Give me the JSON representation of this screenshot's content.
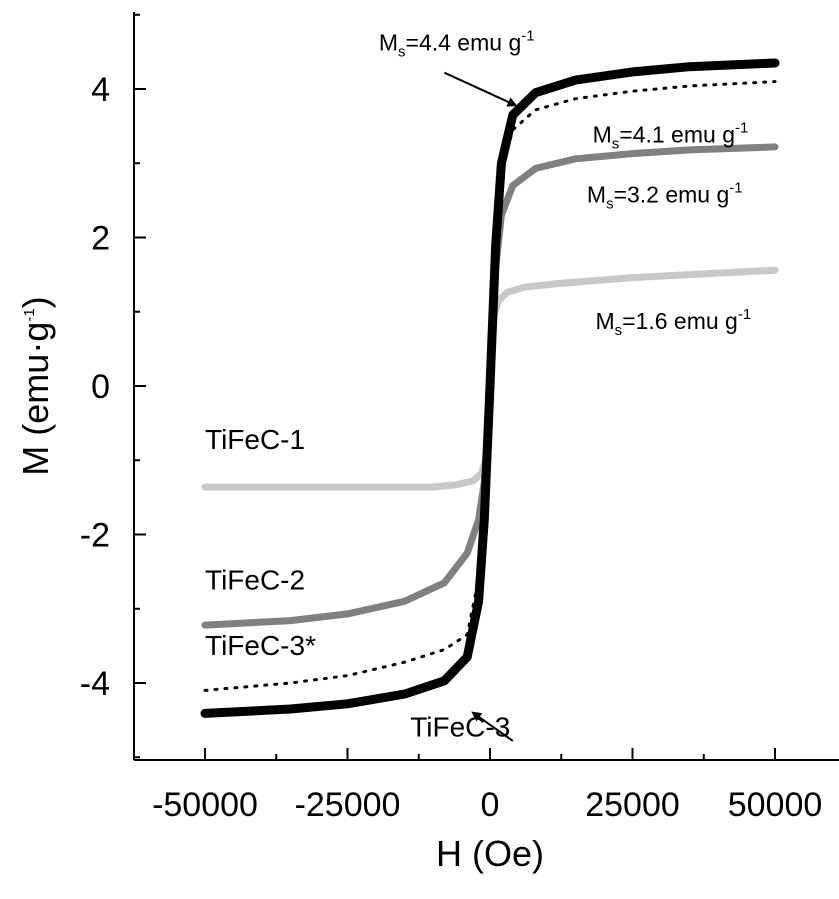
{
  "chart_data": {
    "type": "line",
    "xlabel": "H (Oe)",
    "ylabel": "M (emu·g",
    "ylabel_sup": "-1",
    "ylabel_close": ")",
    "xlim": [
      -62500,
      62500
    ],
    "ylim": [
      -5,
      5
    ],
    "x_ticks": [
      -50000,
      -25000,
      0,
      25000,
      50000
    ],
    "x_tick_labels": [
      "-50000",
      "-25000",
      "0",
      "25000",
      "50000"
    ],
    "y_ticks": [
      -4,
      -2,
      0,
      2,
      4
    ],
    "y_tick_labels": [
      "-4",
      "-2",
      "0",
      "2",
      "4"
    ],
    "grid": false,
    "series": [
      {
        "name": "TiFeC-1",
        "color": "#c8c8c8",
        "style": "solid",
        "points": [
          [
            -50000,
            -1.36
          ],
          [
            -10000,
            -1.36
          ],
          [
            -6000,
            -1.33
          ],
          [
            -3000,
            -1.28
          ],
          [
            -1500,
            -1.18
          ],
          [
            -800,
            -1.0
          ],
          [
            -400,
            -0.6
          ],
          [
            0,
            0
          ],
          [
            400,
            0.6
          ],
          [
            800,
            0.98
          ],
          [
            1500,
            1.15
          ],
          [
            3000,
            1.26
          ],
          [
            6000,
            1.33
          ],
          [
            12000,
            1.38
          ],
          [
            25000,
            1.46
          ],
          [
            40000,
            1.52
          ],
          [
            50000,
            1.56
          ]
        ]
      },
      {
        "name": "TiFeC-2",
        "color": "#808080",
        "style": "solid",
        "points": [
          [
            -50000,
            -3.22
          ],
          [
            -35000,
            -3.16
          ],
          [
            -25000,
            -3.07
          ],
          [
            -15000,
            -2.9
          ],
          [
            -8000,
            -2.65
          ],
          [
            -4000,
            -2.25
          ],
          [
            -2000,
            -1.8
          ],
          [
            -1000,
            -1.3
          ],
          [
            -500,
            -0.7
          ],
          [
            0,
            0
          ],
          [
            500,
            0.8
          ],
          [
            1000,
            1.6
          ],
          [
            2000,
            2.3
          ],
          [
            4000,
            2.7
          ],
          [
            8000,
            2.93
          ],
          [
            15000,
            3.06
          ],
          [
            25000,
            3.13
          ],
          [
            35000,
            3.18
          ],
          [
            50000,
            3.22
          ]
        ]
      },
      {
        "name": "TiFeC-3*",
        "color": "#000000",
        "style": "dotted",
        "points": [
          [
            -50000,
            -4.1
          ],
          [
            -35000,
            -4.0
          ],
          [
            -25000,
            -3.9
          ],
          [
            -15000,
            -3.72
          ],
          [
            -8000,
            -3.55
          ],
          [
            -4000,
            -3.35
          ],
          [
            -2000,
            -2.6
          ],
          [
            -1000,
            -1.6
          ],
          [
            0,
            0
          ],
          [
            1000,
            1.8
          ],
          [
            2000,
            2.9
          ],
          [
            4000,
            3.45
          ],
          [
            8000,
            3.72
          ],
          [
            15000,
            3.87
          ],
          [
            25000,
            3.97
          ],
          [
            35000,
            4.04
          ],
          [
            50000,
            4.1
          ]
        ]
      },
      {
        "name": "TiFeC-3",
        "color": "#000000",
        "style": "solid",
        "points": [
          [
            -50000,
            -4.41
          ],
          [
            -35000,
            -4.35
          ],
          [
            -25000,
            -4.28
          ],
          [
            -15000,
            -4.15
          ],
          [
            -8000,
            -3.97
          ],
          [
            -4000,
            -3.65
          ],
          [
            -2000,
            -2.9
          ],
          [
            -1000,
            -1.8
          ],
          [
            0,
            0
          ],
          [
            1000,
            1.9
          ],
          [
            2000,
            3.0
          ],
          [
            4000,
            3.65
          ],
          [
            8000,
            3.95
          ],
          [
            15000,
            4.12
          ],
          [
            25000,
            4.23
          ],
          [
            35000,
            4.3
          ],
          [
            50000,
            4.35
          ]
        ]
      }
    ],
    "series_labels": [
      {
        "text": "TiFeC-1",
        "x": -50000,
        "y": -0.85
      },
      {
        "text": "TiFeC-2",
        "x": -50000,
        "y": -2.74
      },
      {
        "text": "TiFeC-3*",
        "x": -50000,
        "y": -3.62
      },
      {
        "text": "TiFeC-3",
        "x": -14000,
        "y": -4.72
      }
    ],
    "annotations": [
      {
        "id": "ms1",
        "pre": "M",
        "sub": "s",
        "mid": "=4.4 emu g",
        "sup": "-1",
        "x": -19500,
        "y": 4.52
      },
      {
        "id": "ms2",
        "pre": "M",
        "sub": "s",
        "mid": "=4.1 emu g",
        "sup": "-1",
        "x": 18000,
        "y": 3.28
      },
      {
        "id": "ms3",
        "pre": "M",
        "sub": "s",
        "mid": "=3.2 emu g",
        "sup": "-1",
        "x": 17000,
        "y": 2.47
      },
      {
        "id": "ms4",
        "pre": "M",
        "sub": "s",
        "mid": "=1.6 emu g",
        "sup": "-1",
        "x": 18500,
        "y": 0.77
      }
    ],
    "arrows": [
      {
        "from": [
          -8000,
          4.22
        ],
        "to": [
          4500,
          3.78
        ]
      },
      {
        "from": [
          4000,
          -4.78
        ],
        "to": [
          -3000,
          -4.4
        ]
      }
    ]
  }
}
